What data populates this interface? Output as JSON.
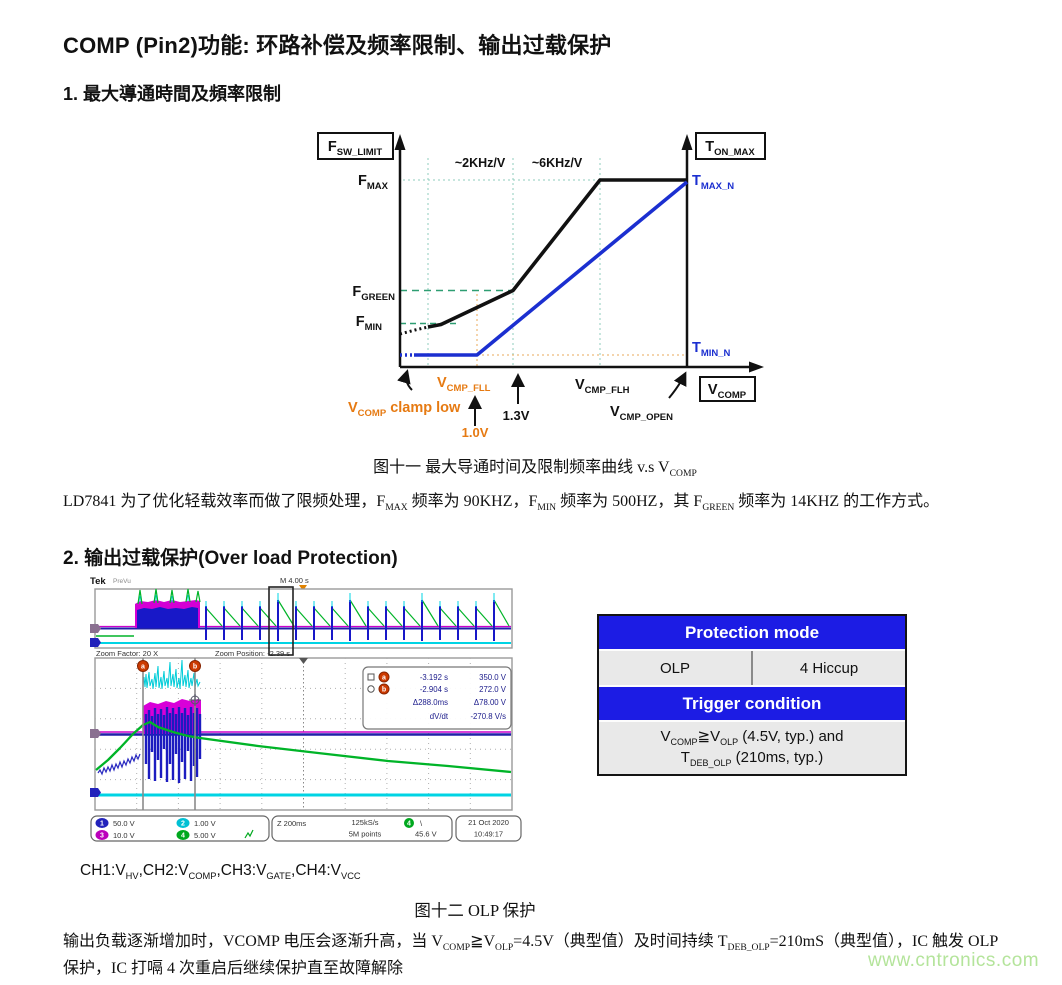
{
  "doc": {
    "title": "COMP (Pin2)功能: 环路补偿及频率限制、输出过载保护",
    "section1": "1.  最大導通時間及頻率限制",
    "section2": "2.   输出过载保护(Over load Protection)",
    "fig11_caption": [
      {
        "t": "图十一  最大导通时间及限制频率曲线 v.s V"
      },
      {
        "t": "COMP",
        "sub": true
      }
    ],
    "para1": [
      {
        "t": "LD7841 为了优化轻载效率而做了限频处理，F"
      },
      {
        "t": "MAX",
        "sub": true
      },
      {
        "t": " 频率为 90KHZ，F"
      },
      {
        "t": "MIN",
        "sub": true
      },
      {
        "t": " 频率为 500HZ，其 F"
      },
      {
        "t": "GREEN",
        "sub": true
      },
      {
        "t": " 频率为 14KHZ 的工作方式。"
      }
    ],
    "ch_line": [
      {
        "t": "CH1:V"
      },
      {
        "t": "HV",
        "sub": true
      },
      {
        "t": ",CH2:V"
      },
      {
        "t": "COMP",
        "sub": true
      },
      {
        "t": ",CH3:V"
      },
      {
        "t": "GATE",
        "sub": true
      },
      {
        "t": ",CH4:V"
      },
      {
        "t": "VCC",
        "sub": true
      }
    ],
    "fig12_caption": "图十二  OLP 保护",
    "para2": [
      {
        "t": "输出负载逐渐增加时，VCOMP 电压会逐渐升高，当 V"
      },
      {
        "t": "COMP",
        "sub": true
      },
      {
        "t": "≧V"
      },
      {
        "t": "OLP",
        "sub": true
      },
      {
        "t": "=4.5V（典型值）及时间持续 T"
      },
      {
        "t": "DEB_OLP",
        "sub": true
      },
      {
        "t": "=210mS（典型值），IC 触发 OLP 保护，IC 打嗝 4 次重启后继续保护直至故障解除"
      }
    ],
    "watermark": "www.cntronics.com"
  },
  "fig11": {
    "fsw": {
      "m": "F",
      "s": "SW_LIMIT"
    },
    "ton": {
      "m": "T",
      "s": "ON_MAX"
    },
    "fmax": {
      "m": "F",
      "s": "MAX"
    },
    "fgreen": {
      "m": "F",
      "s": "GREEN"
    },
    "fmin": {
      "m": "F",
      "s": "MIN"
    },
    "tmaxn": {
      "m": "T",
      "s": "MAX_N"
    },
    "tminn": {
      "m": "T",
      "s": "MIN_N"
    },
    "slope1": "~2KHz/V",
    "slope2": "~6KHz/V",
    "fll": {
      "m": "V",
      "s": "CMP_FLL"
    },
    "flh": {
      "m": "V",
      "s": "CMP_FLH"
    },
    "open": {
      "m": "V",
      "s": "CMP_OPEN"
    },
    "vcomp": {
      "m": "V",
      "s": "COMP"
    },
    "clamp": {
      "m": "V",
      "s": "COMP",
      "rest": " clamp low"
    },
    "v10": "1.0V",
    "v13": "1.3V",
    "colors": {
      "line_blue": "#1b2fd0",
      "orange": "#e67a12",
      "teal": "#2e9e72",
      "teal_light": "#8fccbc",
      "black": "#111111"
    },
    "curves": {
      "black_dotted": "115,208 130,204 143,201",
      "black_solid": "143,201 156,198.5 228,164.5 315,54 402,54",
      "blue_dotted": "115,229 129,229",
      "blue_solid": "129,229 192,229 402,56"
    }
  },
  "scope": {
    "brand": "Tek",
    "mode": "PreVu",
    "timebase_main": "M 4.00 s",
    "zoom_factor": "Zoom Factor: 20 X",
    "zoom_position": "Zoom Position: -2.39 s",
    "cursor_a_label": "a",
    "cursor_b_label": "b",
    "cursor_a": {
      "time": "-3.192 s",
      "volt": "350.0 V"
    },
    "cursor_b": {
      "time": "-2.904 s",
      "volt": "272.0 V"
    },
    "delta": {
      "time": "Δ288.0ms",
      "volt": "Δ78.00 V"
    },
    "dvdt_label": "dV/dt",
    "dvdt_value": "-270.8 V/s",
    "channels": [
      {
        "num": "1",
        "value": "50.0 V",
        "color": "#2222bb"
      },
      {
        "num": "2",
        "value": "1.00 V",
        "color": "#00c0d4"
      },
      {
        "num": "3",
        "value": "10.0 V",
        "color": "#bb00bb"
      },
      {
        "num": "4",
        "value": "5.00 V",
        "color": "#00a81e"
      }
    ],
    "zoom_timebase": "Z 200ms",
    "sample_rate": "125kS/s",
    "record_length": "5M points",
    "trigger_channel": "4",
    "trigger_slope": "\\",
    "trigger_level": "45.6 V",
    "date": "21 Oct 2020",
    "time": "10:49:17"
  },
  "table": {
    "header1": "Protection mode",
    "cell_left": "OLP",
    "cell_right": "4 Hiccup",
    "header2": "Trigger condition",
    "header_bg": "#1c1ce4",
    "row_bg": "#e9e9e9",
    "condition": [
      {
        "t": "V"
      },
      {
        "t": "COMP",
        "sub": true
      },
      {
        "t": "≧V"
      },
      {
        "t": "OLP",
        "sub": true
      },
      {
        "t": " (4.5V, typ.) and"
      },
      {
        "br": true
      },
      {
        "t": "T"
      },
      {
        "t": "DEB_OLP",
        "sub": true
      },
      {
        "t": " (210ms, typ.)"
      }
    ]
  }
}
